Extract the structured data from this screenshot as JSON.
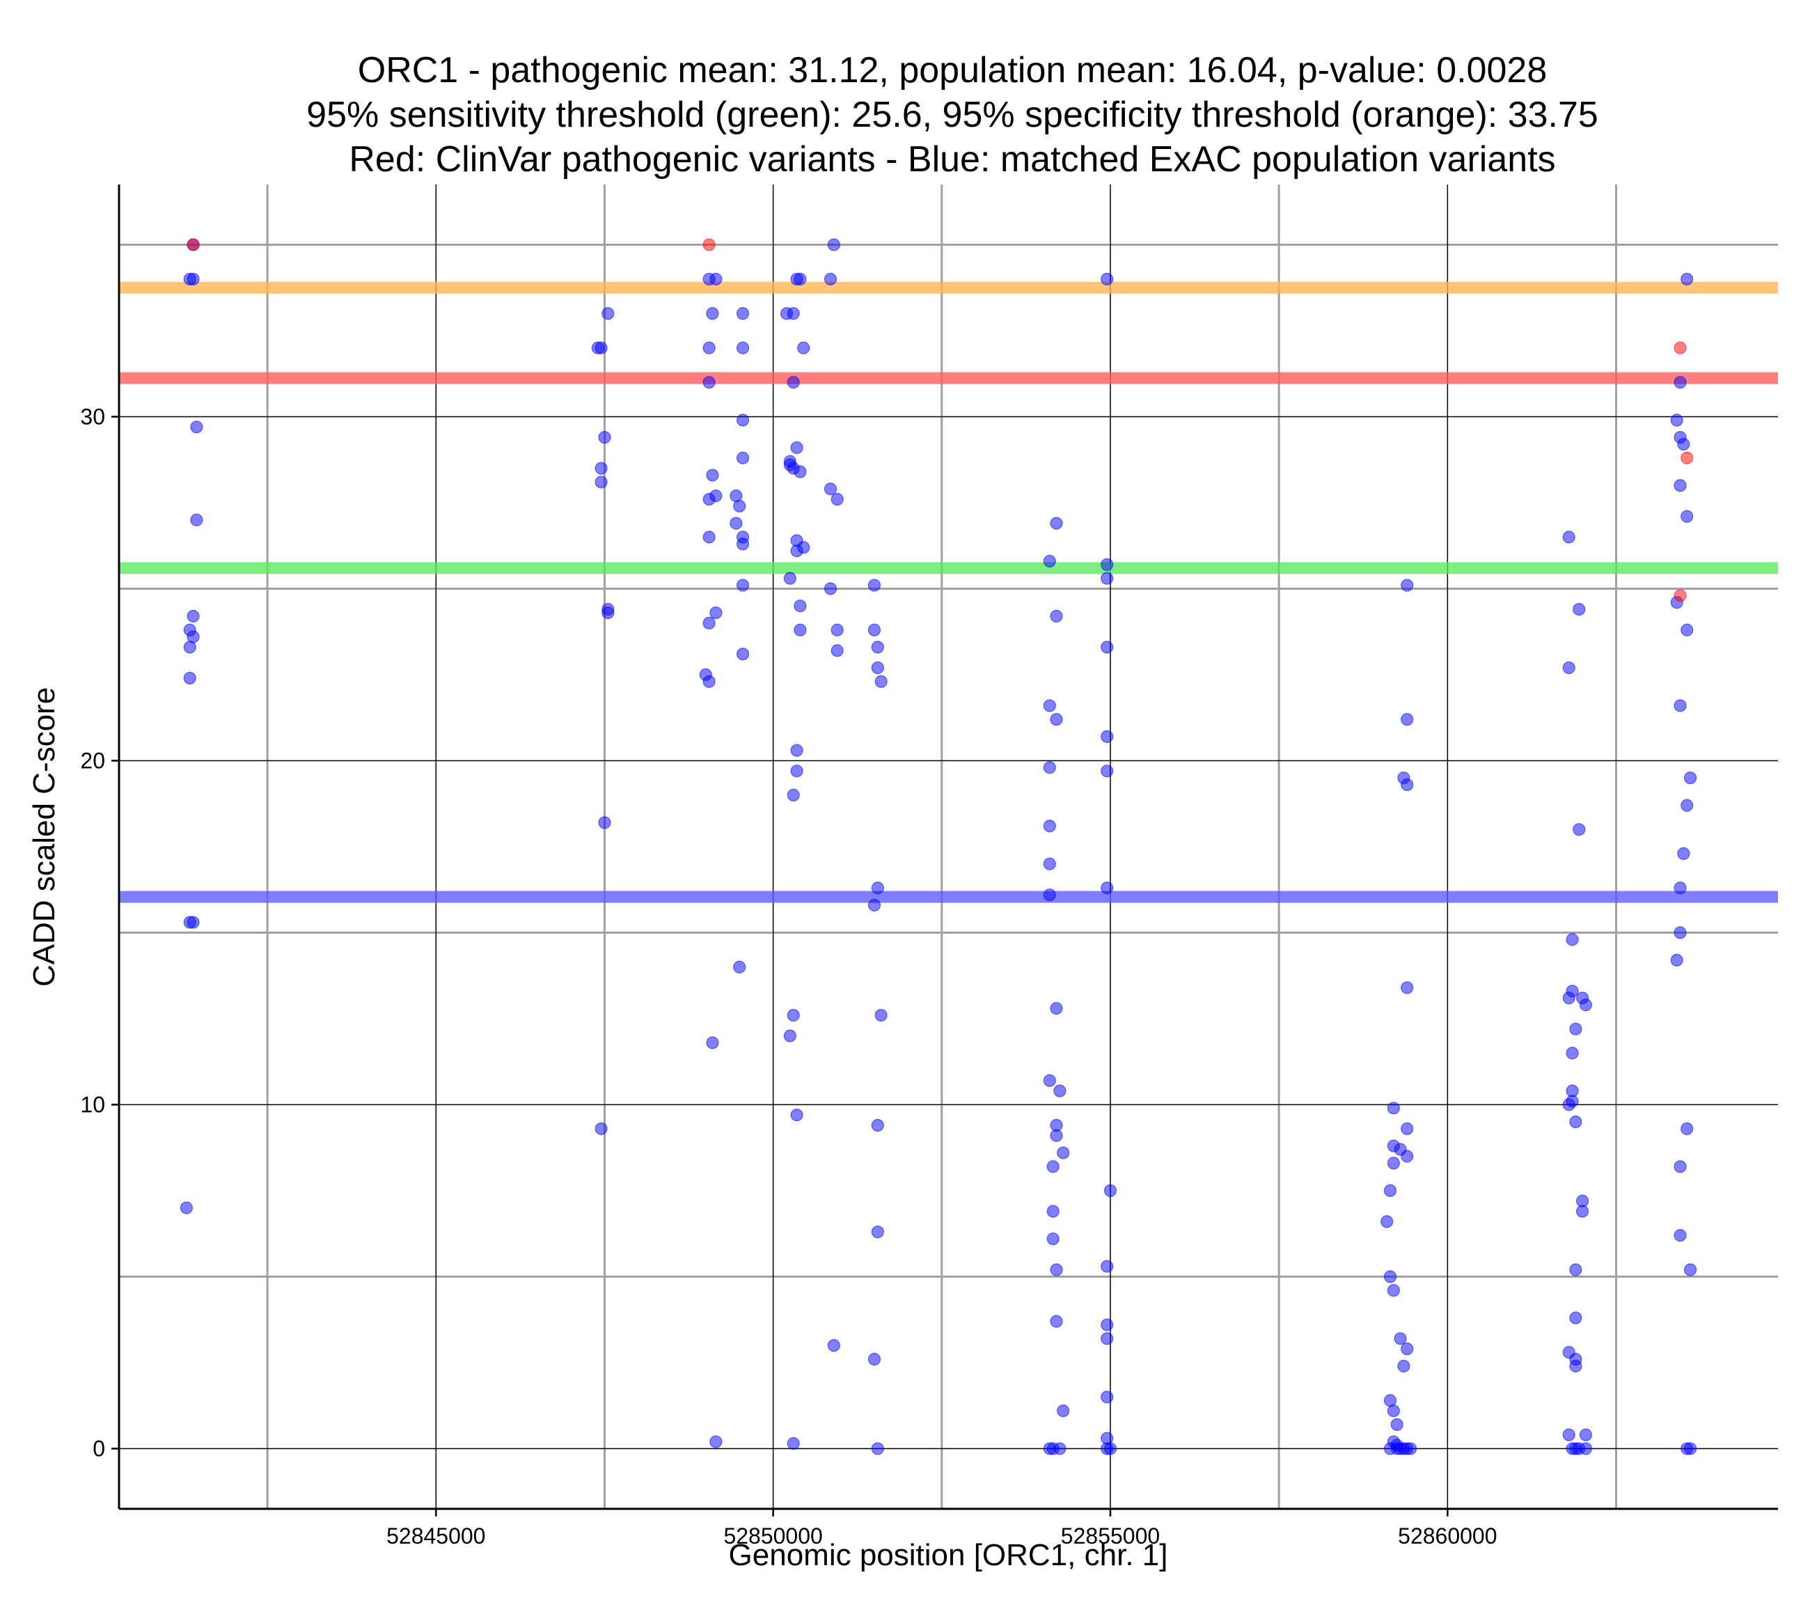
{
  "chart_data": {
    "type": "scatter",
    "title_lines": [
      "ORC1 - pathogenic mean: 31.12, population mean: 16.04, p-value: 0.0028",
      "95% sensitivity threshold (green): 25.6, 95% specificity threshold (orange): 33.75",
      "Red: ClinVar pathogenic variants - Blue: matched ExAC population variants"
    ],
    "xlabel": "Genomic position [ORC1, chr. 1]",
    "ylabel": "CADD scaled C-score",
    "xlim": [
      52840300,
      52864900
    ],
    "ylim": [
      -1.75,
      36.75
    ],
    "x_major_ticks": [
      52845000,
      52850000,
      52855000,
      52860000
    ],
    "x_minor_gridlines": [
      52842500,
      52847500,
      52852500,
      52857500,
      52862500
    ],
    "y_major_ticks": [
      0,
      10,
      20,
      30
    ],
    "y_minor_gridlines": [
      5,
      15,
      25,
      35
    ],
    "grid": true,
    "colors": {
      "pathogenic": "#ff0000",
      "population": "#0000ff",
      "pathogenic_mean_line": "#ff5a5a",
      "population_mean_line": "#5a5aff",
      "sensitivity_line": "#5aeb5a",
      "specificity_line": "#ffb450",
      "major_grid": "#000000",
      "minor_grid": "#a0a0a0"
    },
    "horizontal_lines": [
      {
        "name": "specificity-threshold",
        "y": 33.75,
        "color_key": "specificity_line"
      },
      {
        "name": "pathogenic-mean",
        "y": 31.12,
        "color_key": "pathogenic_mean_line"
      },
      {
        "name": "sensitivity-threshold",
        "y": 25.6,
        "color_key": "sensitivity_line"
      },
      {
        "name": "population-mean",
        "y": 16.04,
        "color_key": "population_mean_line"
      }
    ],
    "series": [
      {
        "name": "ClinVar pathogenic variants",
        "color_key": "pathogenic",
        "points": [
          [
            52841400,
            35
          ],
          [
            52849050,
            35
          ],
          [
            52863450,
            32
          ],
          [
            52863550,
            28.8
          ],
          [
            52863450,
            24.8
          ]
        ]
      },
      {
        "name": "Matched ExAC population variants",
        "color_key": "population",
        "points": [
          [
            52841400,
            35
          ],
          [
            52841400,
            34
          ],
          [
            52841350,
            34
          ],
          [
            52841450,
            29.7
          ],
          [
            52841450,
            27
          ],
          [
            52841400,
            24.2
          ],
          [
            52841350,
            23.8
          ],
          [
            52841400,
            23.6
          ],
          [
            52841350,
            23.3
          ],
          [
            52841350,
            22.4
          ],
          [
            52841350,
            15.3
          ],
          [
            52841400,
            15.3
          ],
          [
            52841300,
            7
          ],
          [
            52847400,
            32
          ],
          [
            52847450,
            32
          ],
          [
            52847550,
            33
          ],
          [
            52847500,
            29.4
          ],
          [
            52847450,
            28.5
          ],
          [
            52847450,
            28.1
          ],
          [
            52847550,
            24.4
          ],
          [
            52847550,
            24.3
          ],
          [
            52847500,
            18.2
          ],
          [
            52847450,
            9.3
          ],
          [
            52849050,
            34
          ],
          [
            52849150,
            34
          ],
          [
            52849100,
            33
          ],
          [
            52849050,
            32
          ],
          [
            52849050,
            31
          ],
          [
            52849100,
            28.3
          ],
          [
            52849050,
            27.6
          ],
          [
            52849150,
            27.7
          ],
          [
            52849050,
            26.5
          ],
          [
            52849050,
            24
          ],
          [
            52849150,
            24.3
          ],
          [
            52849000,
            22.5
          ],
          [
            52849050,
            22.3
          ],
          [
            52849100,
            11.8
          ],
          [
            52849150,
            0.2
          ],
          [
            52849550,
            33
          ],
          [
            52849550,
            32
          ],
          [
            52849550,
            29.9
          ],
          [
            52849550,
            28.8
          ],
          [
            52849450,
            27.7
          ],
          [
            52849500,
            27.4
          ],
          [
            52849450,
            26.9
          ],
          [
            52849550,
            26.5
          ],
          [
            52849550,
            26.3
          ],
          [
            52849550,
            25.1
          ],
          [
            52849550,
            23.1
          ],
          [
            52849500,
            14
          ],
          [
            52850200,
            33
          ],
          [
            52850300,
            33
          ],
          [
            52850350,
            34
          ],
          [
            52850400,
            34
          ],
          [
            52850300,
            31
          ],
          [
            52850350,
            29.1
          ],
          [
            52850250,
            28.7
          ],
          [
            52850300,
            28.5
          ],
          [
            52850400,
            28.4
          ],
          [
            52850250,
            28.6
          ],
          [
            52850350,
            26.4
          ],
          [
            52850350,
            26.1
          ],
          [
            52850450,
            26.2
          ],
          [
            52850250,
            25.3
          ],
          [
            52850400,
            24.5
          ],
          [
            52850400,
            23.8
          ],
          [
            52850350,
            20.3
          ],
          [
            52850350,
            19.7
          ],
          [
            52850300,
            19
          ],
          [
            52850300,
            12.6
          ],
          [
            52850250,
            12
          ],
          [
            52850350,
            9.7
          ],
          [
            52850300,
            0.15
          ],
          [
            52850450,
            32
          ],
          [
            52850850,
            34
          ],
          [
            52850900,
            35
          ],
          [
            52850850,
            27.9
          ],
          [
            52850950,
            27.6
          ],
          [
            52850850,
            25
          ],
          [
            52850950,
            23.8
          ],
          [
            52850950,
            23.2
          ],
          [
            52850900,
            3
          ],
          [
            52851500,
            25.1
          ],
          [
            52851500,
            23.8
          ],
          [
            52851550,
            23.3
          ],
          [
            52851550,
            22.7
          ],
          [
            52851600,
            22.3
          ],
          [
            52851550,
            16.3
          ],
          [
            52851500,
            15.8
          ],
          [
            52851600,
            12.6
          ],
          [
            52851550,
            9.4
          ],
          [
            52851550,
            6.3
          ],
          [
            52851500,
            2.6
          ],
          [
            52851550,
            0
          ],
          [
            52854100,
            25.8
          ],
          [
            52854200,
            26.9
          ],
          [
            52854200,
            24.2
          ],
          [
            52854100,
            21.6
          ],
          [
            52854200,
            21.2
          ],
          [
            52854100,
            19.8
          ],
          [
            52854100,
            18.1
          ],
          [
            52854100,
            17
          ],
          [
            52854100,
            16.1
          ],
          [
            52854200,
            12.8
          ],
          [
            52854100,
            10.7
          ],
          [
            52854250,
            10.4
          ],
          [
            52854200,
            9.4
          ],
          [
            52854200,
            9.1
          ],
          [
            52854300,
            8.6
          ],
          [
            52854150,
            8.2
          ],
          [
            52854150,
            6.9
          ],
          [
            52854150,
            6.1
          ],
          [
            52854200,
            5.2
          ],
          [
            52854200,
            3.7
          ],
          [
            52854300,
            1.1
          ],
          [
            52854100,
            0
          ],
          [
            52854150,
            0
          ],
          [
            52854250,
            0
          ],
          [
            52854950,
            34
          ],
          [
            52854950,
            25.7
          ],
          [
            52854950,
            25.3
          ],
          [
            52854950,
            23.3
          ],
          [
            52854950,
            20.7
          ],
          [
            52854950,
            19.7
          ],
          [
            52854950,
            16.3
          ],
          [
            52855000,
            7.5
          ],
          [
            52854950,
            5.3
          ],
          [
            52854950,
            3.6
          ],
          [
            52854950,
            3.2
          ],
          [
            52854950,
            1.5
          ],
          [
            52854950,
            0.3
          ],
          [
            52854950,
            0
          ],
          [
            52855000,
            0
          ],
          [
            52859400,
            25.1
          ],
          [
            52859400,
            21.2
          ],
          [
            52859350,
            19.5
          ],
          [
            52859400,
            19.3
          ],
          [
            52859400,
            13.4
          ],
          [
            52859200,
            9.9
          ],
          [
            52859400,
            9.3
          ],
          [
            52859200,
            8.8
          ],
          [
            52859300,
            8.7
          ],
          [
            52859400,
            8.5
          ],
          [
            52859200,
            8.3
          ],
          [
            52859150,
            7.5
          ],
          [
            52859100,
            6.6
          ],
          [
            52859150,
            5
          ],
          [
            52859200,
            4.6
          ],
          [
            52859300,
            3.2
          ],
          [
            52859400,
            2.9
          ],
          [
            52859350,
            2.4
          ],
          [
            52859150,
            1.4
          ],
          [
            52859200,
            1.1
          ],
          [
            52859250,
            0.7
          ],
          [
            52859200,
            0.2
          ],
          [
            52859250,
            0.1
          ],
          [
            52859150,
            0
          ],
          [
            52859250,
            0
          ],
          [
            52859300,
            0
          ],
          [
            52859350,
            0
          ],
          [
            52859400,
            0
          ],
          [
            52859450,
            0
          ],
          [
            52861800,
            26.5
          ],
          [
            52861950,
            24.4
          ],
          [
            52861800,
            22.7
          ],
          [
            52861950,
            18
          ],
          [
            52861850,
            14.8
          ],
          [
            52861850,
            13.3
          ],
          [
            52861800,
            13.1
          ],
          [
            52862000,
            13.1
          ],
          [
            52862050,
            12.9
          ],
          [
            52861900,
            12.2
          ],
          [
            52861850,
            11.5
          ],
          [
            52861850,
            10.4
          ],
          [
            52861850,
            10.1
          ],
          [
            52861800,
            10
          ],
          [
            52861900,
            9.5
          ],
          [
            52862000,
            7.2
          ],
          [
            52862000,
            6.9
          ],
          [
            52861900,
            5.2
          ],
          [
            52861900,
            3.8
          ],
          [
            52861800,
            2.8
          ],
          [
            52861900,
            2.6
          ],
          [
            52861900,
            2.4
          ],
          [
            52861800,
            0.4
          ],
          [
            52862050,
            0.4
          ],
          [
            52861850,
            0
          ],
          [
            52861900,
            0
          ],
          [
            52861950,
            0
          ],
          [
            52862050,
            0
          ],
          [
            52863550,
            34
          ],
          [
            52863400,
            29.9
          ],
          [
            52863450,
            31
          ],
          [
            52863450,
            29.4
          ],
          [
            52863500,
            29.2
          ],
          [
            52863450,
            28
          ],
          [
            52863550,
            27.1
          ],
          [
            52863400,
            24.6
          ],
          [
            52863550,
            23.8
          ],
          [
            52863450,
            21.6
          ],
          [
            52863600,
            19.5
          ],
          [
            52863550,
            18.7
          ],
          [
            52863500,
            17.3
          ],
          [
            52863450,
            16.3
          ],
          [
            52863450,
            15
          ],
          [
            52863400,
            14.2
          ],
          [
            52863550,
            9.3
          ],
          [
            52863450,
            8.2
          ],
          [
            52863450,
            6.2
          ],
          [
            52863600,
            5.2
          ],
          [
            52863550,
            0
          ],
          [
            52863600,
            0
          ]
        ]
      }
    ]
  }
}
